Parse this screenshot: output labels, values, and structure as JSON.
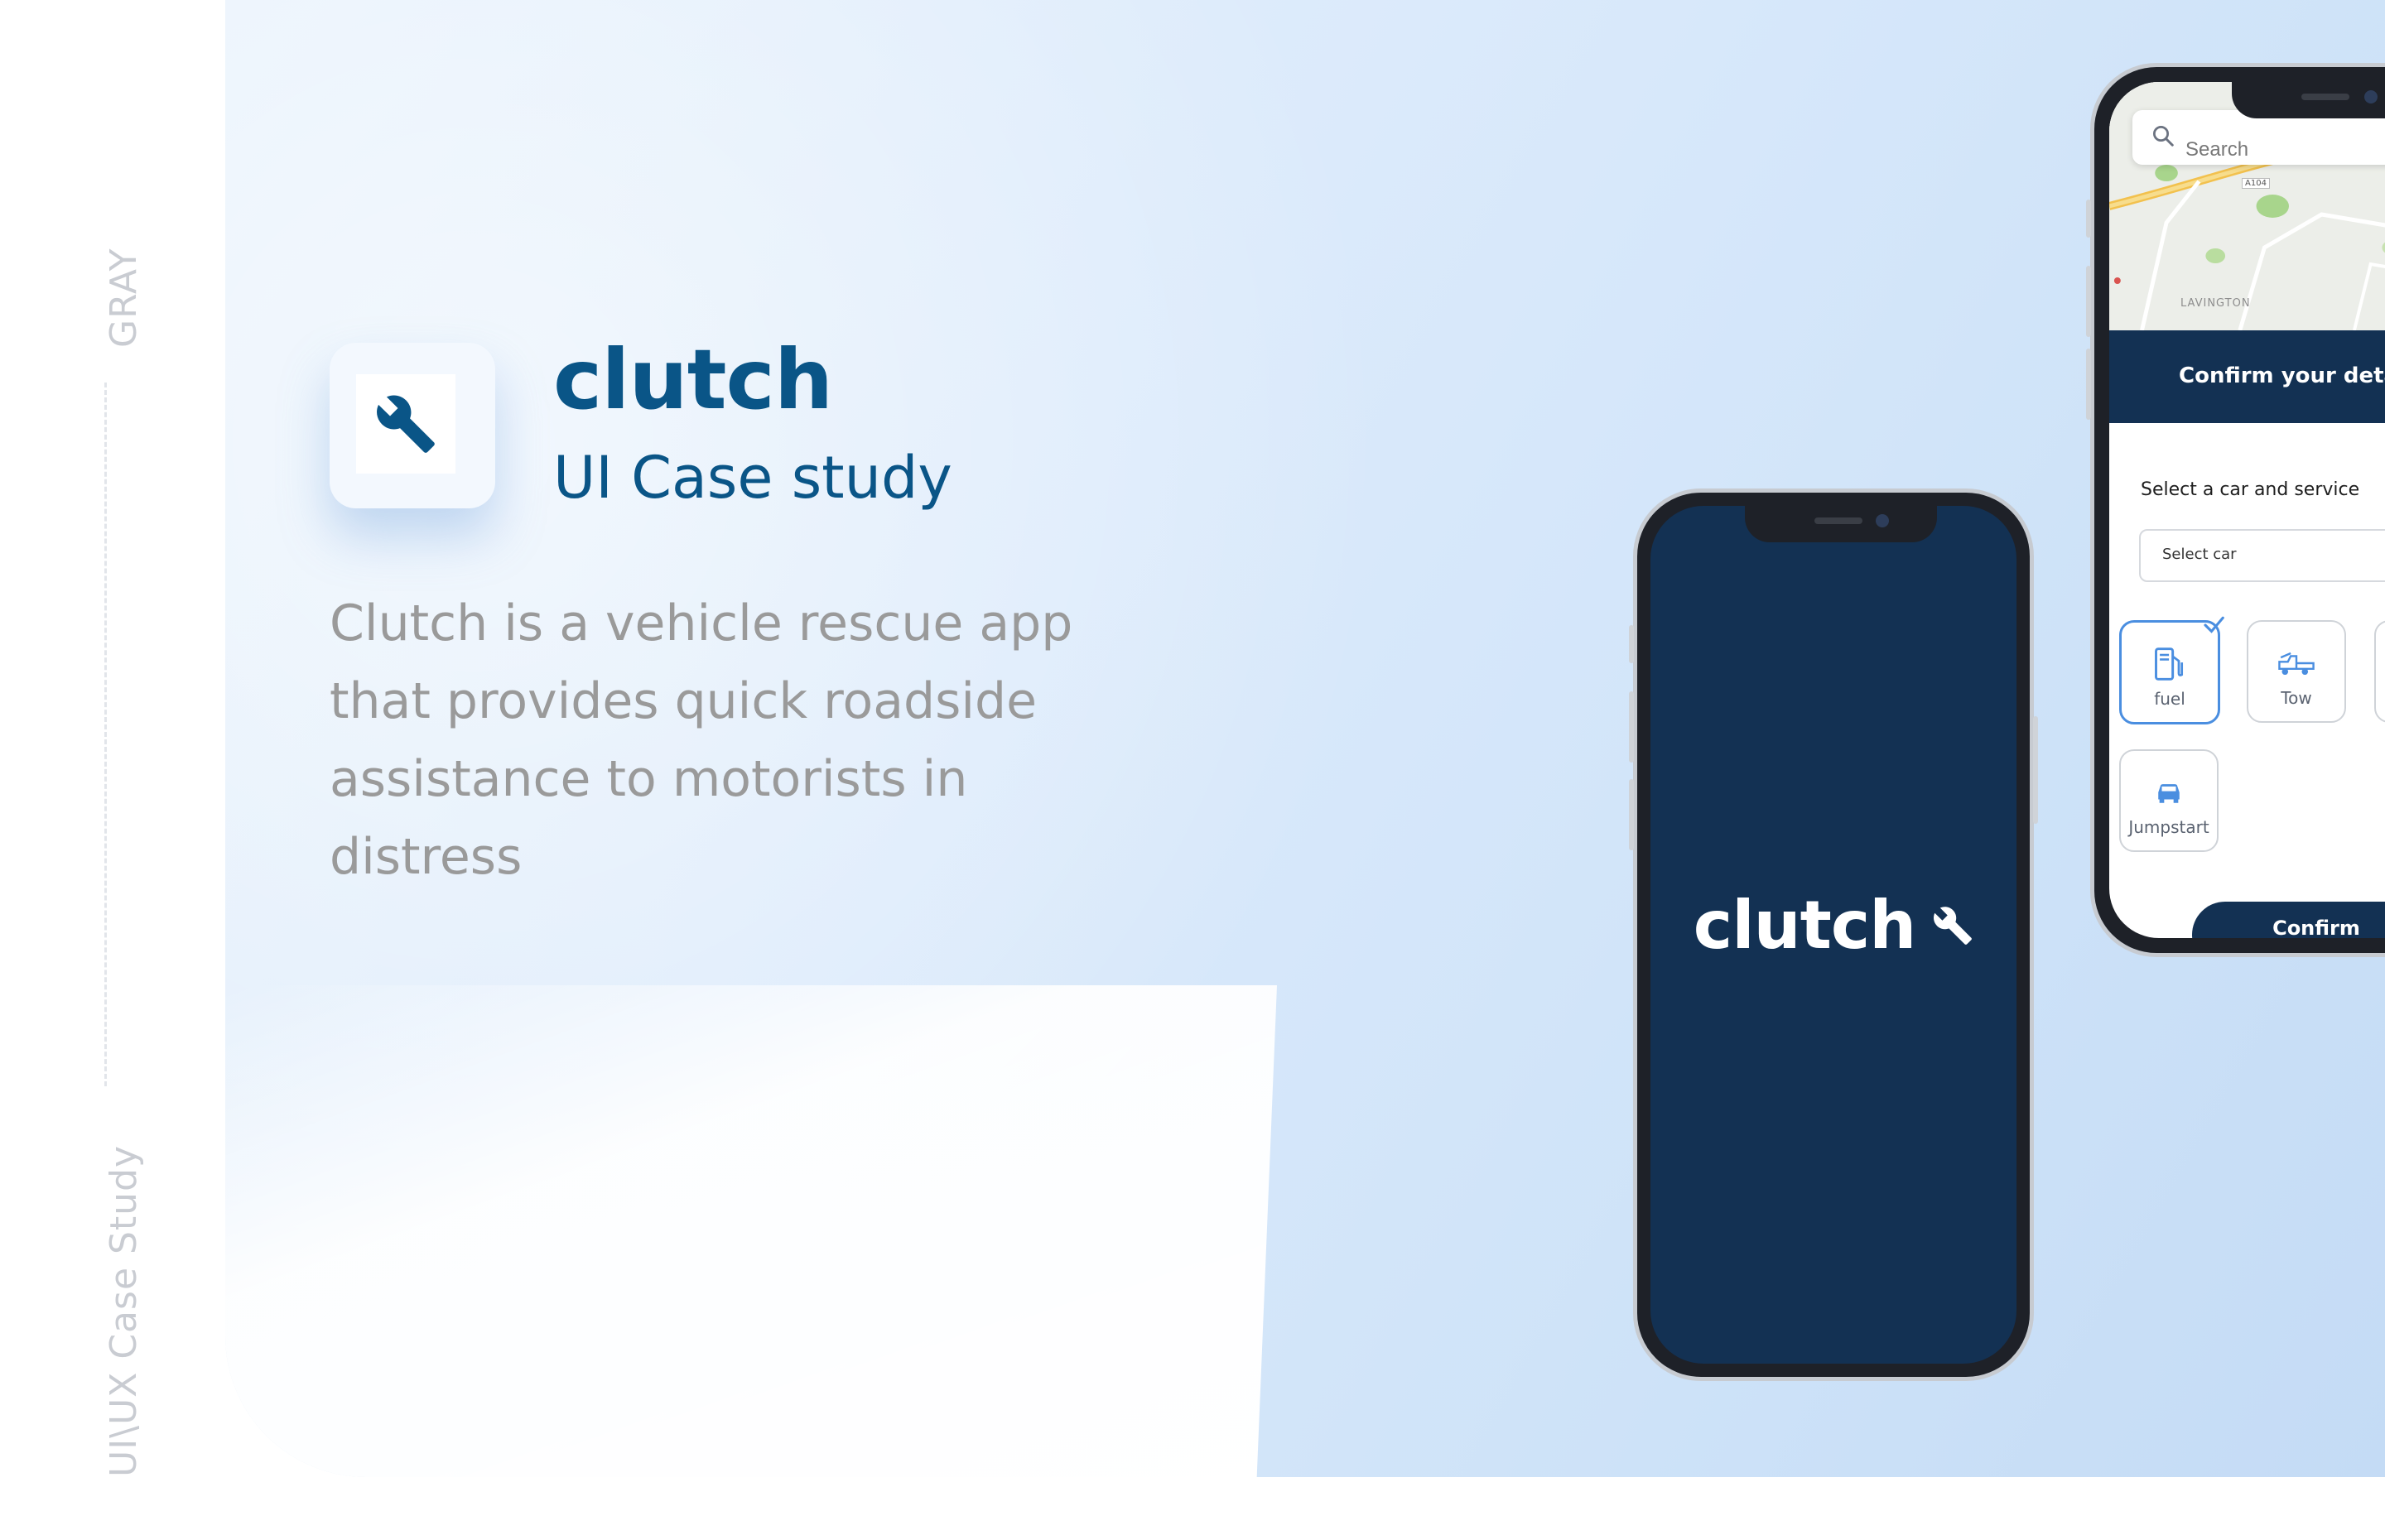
{
  "side_rail": {
    "top_label": "GRAY",
    "bottom_label": "UI\\UX Case Study"
  },
  "hero": {
    "app_name": "clutch",
    "subtitle": "UI Case study",
    "description": "Clutch is a vehicle rescue app that provides quick roadside assistance to motorists in distress",
    "icon": "wrench-icon"
  },
  "colors": {
    "brand_navy": "#133153",
    "brand_blue": "#0a5587",
    "accent_blue": "#4a8ee0",
    "muted_text": "#9a9a9a"
  },
  "splash_phone": {
    "logo_text": "clutch",
    "logo_icon": "wrench-icon"
  },
  "booking_phone": {
    "search_placeholder": "Search",
    "map_labels": [
      "LAVINGTON",
      "A104"
    ],
    "header_title": "Confirm your details",
    "section_label": "Select a car and service",
    "select_placeholder": "Select car",
    "services": [
      {
        "label": "fuel",
        "icon": "fuel-pump-icon",
        "selected": true
      },
      {
        "label": "Tow",
        "icon": "tow-truck-icon",
        "selected": false
      },
      {
        "label": "Jumpstart",
        "icon": "car-icon",
        "selected": false
      }
    ],
    "confirm_label": "Confirm"
  }
}
